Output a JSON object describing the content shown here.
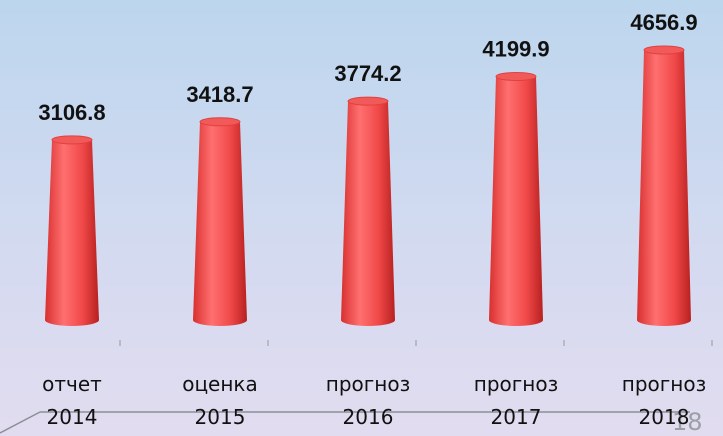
{
  "chart_data": {
    "type": "bar",
    "categories": [
      "отчет 2014",
      "оценка 2015",
      "прогноз 2016",
      "прогноз 2017",
      "прогноз 2018"
    ],
    "values": [
      3106.8,
      3418.7,
      3774.2,
      4199.9,
      4656.9
    ],
    "color": "#f04848"
  },
  "page_number": "18"
}
